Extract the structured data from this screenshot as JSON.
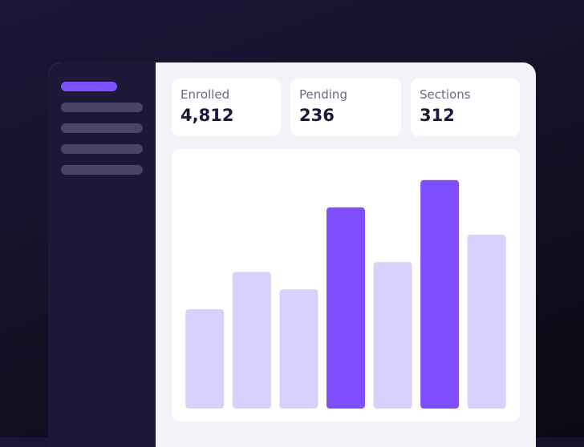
{
  "stats": [
    {
      "label": "Enrolled",
      "value": "4,812"
    },
    {
      "label": "Pending",
      "value": "236"
    },
    {
      "label": "Sections",
      "value": "312"
    }
  ],
  "chart_data": {
    "type": "bar",
    "categories": [
      null,
      null,
      null,
      null,
      null,
      null,
      null
    ],
    "values": [
      40,
      55,
      48,
      81,
      59,
      92,
      70
    ],
    "colors": [
      "#d9d0fc",
      "#d9d0fc",
      "#d9d0fc",
      "#7f4fff",
      "#d9d0fc",
      "#7f4fff",
      "#d9d0fc"
    ],
    "ylim": [
      0,
      100
    ]
  }
}
